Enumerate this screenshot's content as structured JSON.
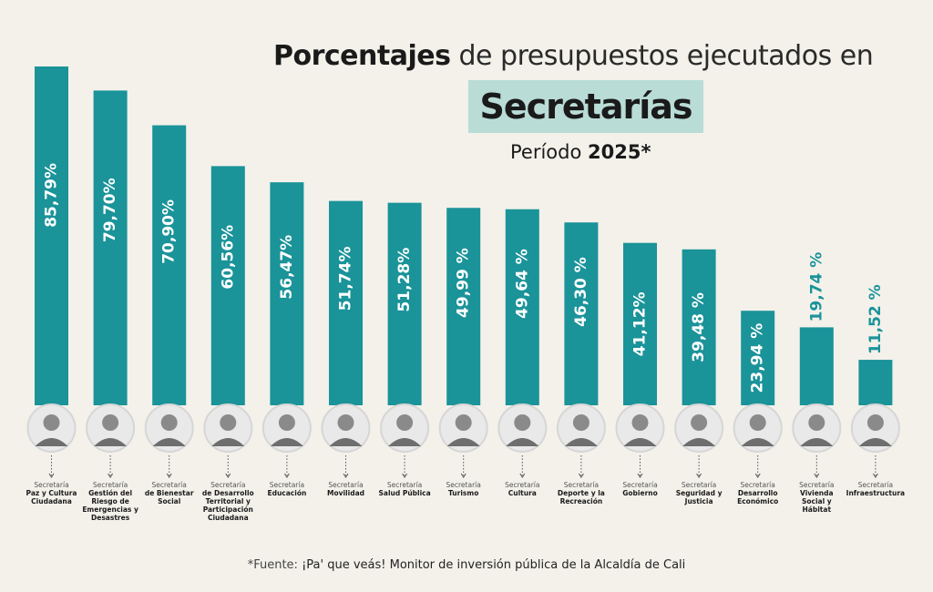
{
  "title": {
    "part1_bold": "Porcentajes",
    "part1_rest": " de presupuestos ejecutados en",
    "part2": "Secretarías",
    "period_label": "Período ",
    "period_year": "2025*"
  },
  "footer": {
    "prefix": "*Fuente: ",
    "source": "¡Pa' que veás! Monitor de inversión pública de la Alcaldía de Cali"
  },
  "colors": {
    "bar": "#1a9399",
    "background": "#f3f1ea",
    "highlight": "#b9dcd6"
  },
  "chart_data": {
    "type": "bar",
    "categories": [
      "Paz y Cultura Ciudadana",
      "Gestión del Riesgo de Emergencias y Desastres",
      "de Bienestar Social",
      "de Desarrollo Territorial y Participación Ciudadana",
      "Educación",
      "Movilidad",
      "Salud Pública",
      "Turismo",
      "Cultura",
      "Deporte y la Recreación",
      "Gobierno",
      "Seguridad y Justicia",
      "Desarrollo Económico",
      "Vivienda Social y Hábitat",
      "Infraestructura"
    ],
    "category_prefix": "Secretaría",
    "values": [
      85.79,
      79.7,
      70.9,
      60.56,
      56.47,
      51.74,
      51.28,
      49.99,
      49.64,
      46.3,
      41.12,
      39.48,
      23.94,
      19.74,
      11.52
    ],
    "value_labels": [
      "85,79%",
      "79,70%",
      "70,90%",
      "60,56%",
      "56,47%",
      "51,74%",
      "51,28%",
      "49,99 %",
      "49,64 %",
      "46,30 %",
      "41,12%",
      "39,48 %",
      "23,94 %",
      "19,74 %",
      "11,52 %"
    ],
    "label_outside": [
      false,
      false,
      false,
      false,
      false,
      false,
      false,
      false,
      false,
      false,
      false,
      false,
      false,
      true,
      true
    ],
    "ylim": [
      0,
      100
    ],
    "grid": false
  }
}
